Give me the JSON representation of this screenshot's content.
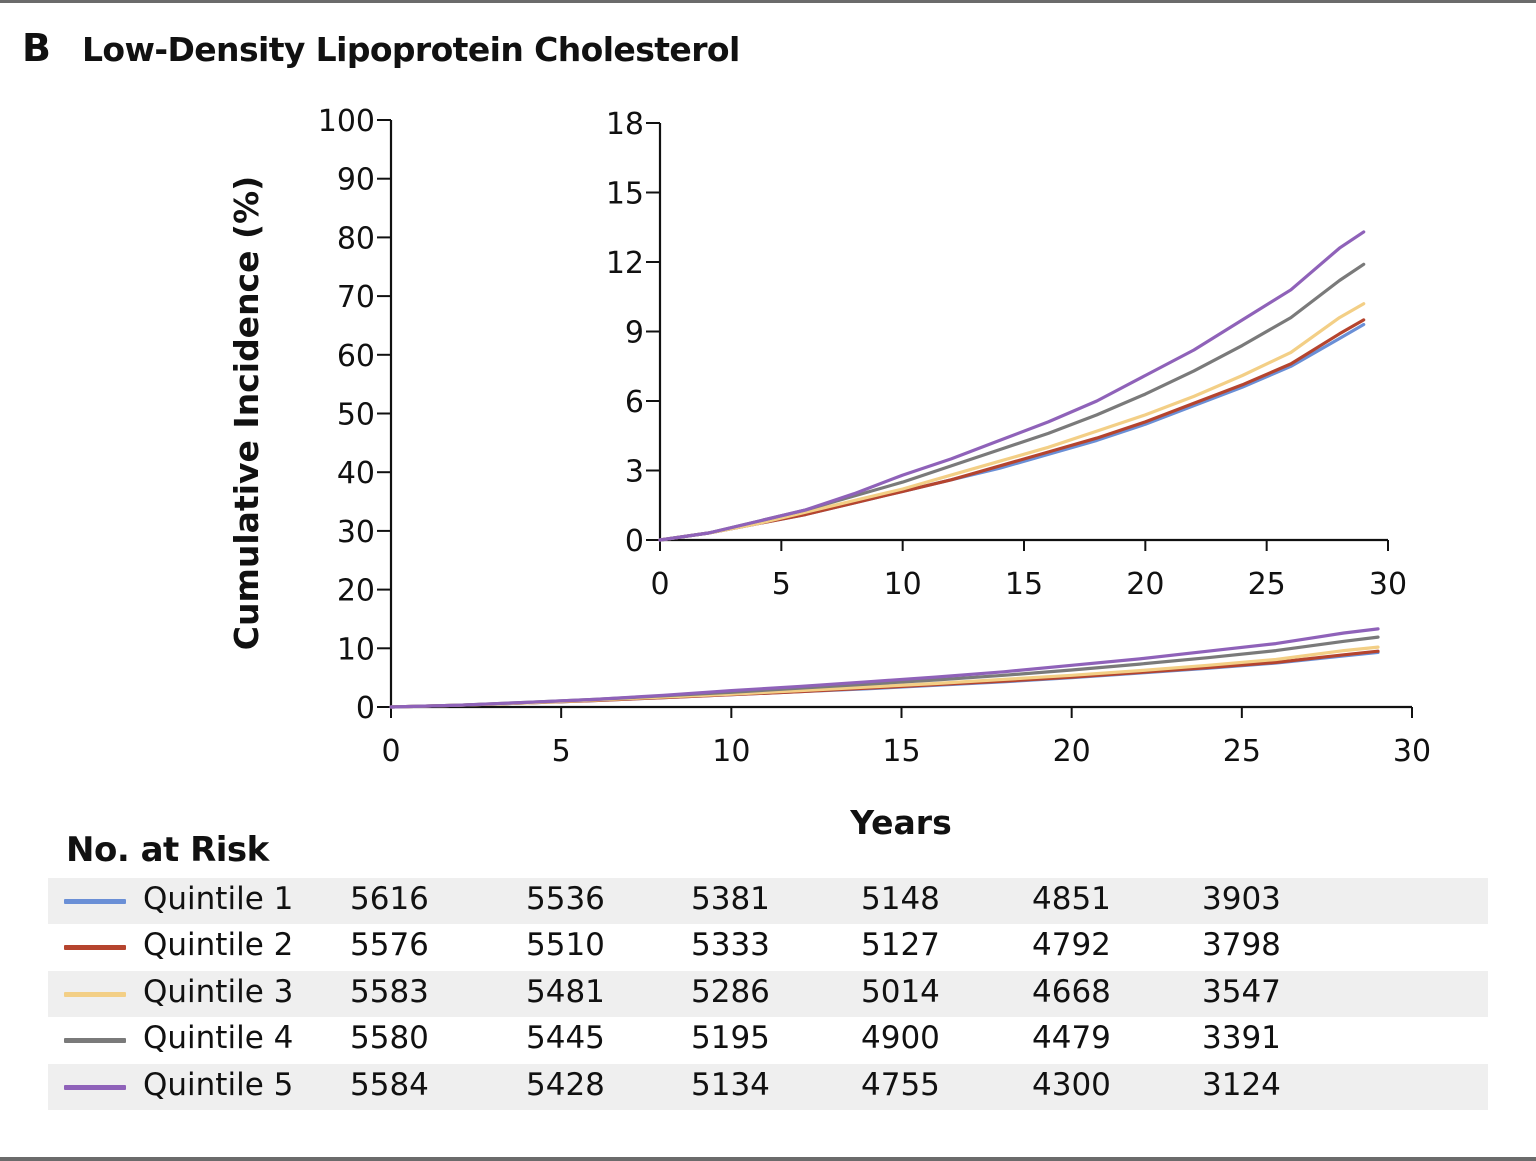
{
  "panel": {
    "letter": "B",
    "title": "Low-Density Lipoprotein Cholesterol"
  },
  "chart_data": [
    {
      "type": "line",
      "title": "Low-Density Lipoprotein Cholesterol",
      "xlabel": "Years",
      "ylabel": "Cumulative Incidence (%)",
      "xlim": [
        0,
        30
      ],
      "ylim": [
        0,
        100
      ],
      "xticks": [
        0,
        5,
        10,
        15,
        20,
        25,
        30
      ],
      "yticks": [
        0,
        10,
        20,
        30,
        40,
        50,
        60,
        70,
        80,
        90,
        100
      ],
      "grid": false,
      "x": [
        0,
        2,
        4,
        6,
        8,
        10,
        12,
        14,
        16,
        18,
        20,
        22,
        24,
        26,
        28,
        29
      ],
      "series": [
        {
          "name": "Quintile 1",
          "color": "#6a8fd6",
          "values": [
            0,
            0.3,
            0.7,
            1.1,
            1.6,
            2.1,
            2.6,
            3.1,
            3.7,
            4.3,
            5.0,
            5.8,
            6.6,
            7.5,
            8.7,
            9.3
          ]
        },
        {
          "name": "Quintile 2",
          "color": "#b5442e",
          "values": [
            0,
            0.3,
            0.7,
            1.1,
            1.6,
            2.1,
            2.6,
            3.2,
            3.8,
            4.4,
            5.1,
            5.9,
            6.7,
            7.6,
            8.9,
            9.5
          ]
        },
        {
          "name": "Quintile 3",
          "color": "#f3cf86",
          "values": [
            0,
            0.3,
            0.7,
            1.2,
            1.7,
            2.2,
            2.8,
            3.4,
            4.0,
            4.7,
            5.4,
            6.2,
            7.1,
            8.1,
            9.6,
            10.2
          ]
        },
        {
          "name": "Quintile 4",
          "color": "#7a7a7a",
          "values": [
            0,
            0.3,
            0.8,
            1.3,
            1.9,
            2.5,
            3.2,
            3.9,
            4.6,
            5.4,
            6.3,
            7.3,
            8.4,
            9.6,
            11.2,
            11.9
          ]
        },
        {
          "name": "Quintile 5",
          "color": "#8f62b9",
          "values": [
            0,
            0.3,
            0.8,
            1.3,
            2.0,
            2.8,
            3.5,
            4.3,
            5.1,
            6.0,
            7.1,
            8.2,
            9.5,
            10.8,
            12.6,
            13.3
          ]
        }
      ]
    },
    {
      "type": "line",
      "title": "inset",
      "xlim": [
        0,
        30
      ],
      "ylim": [
        0,
        18
      ],
      "xticks": [
        0,
        5,
        10,
        15,
        20,
        25,
        30
      ],
      "yticks": [
        0,
        3,
        6,
        9,
        12,
        15,
        18
      ],
      "grid": false,
      "series_ref": "same data as main plot, zoomed y-axis"
    }
  ],
  "risk_table": {
    "title": "No. at Risk",
    "rows": [
      {
        "label": "Quintile 1",
        "color": "#6a8fd6",
        "values": [
          "5616",
          "5536",
          "5381",
          "5148",
          "4851",
          "3903"
        ]
      },
      {
        "label": "Quintile 2",
        "color": "#b5442e",
        "values": [
          "5576",
          "5510",
          "5333",
          "5127",
          "4792",
          "3798"
        ]
      },
      {
        "label": "Quintile 3",
        "color": "#f3cf86",
        "values": [
          "5583",
          "5481",
          "5286",
          "5014",
          "4668",
          "3547"
        ]
      },
      {
        "label": "Quintile 4",
        "color": "#7a7a7a",
        "values": [
          "5580",
          "5445",
          "5195",
          "4900",
          "4479",
          "3391"
        ]
      },
      {
        "label": "Quintile 5",
        "color": "#8f62b9",
        "values": [
          "5584",
          "5428",
          "5134",
          "4755",
          "4300",
          "3124"
        ]
      }
    ]
  }
}
